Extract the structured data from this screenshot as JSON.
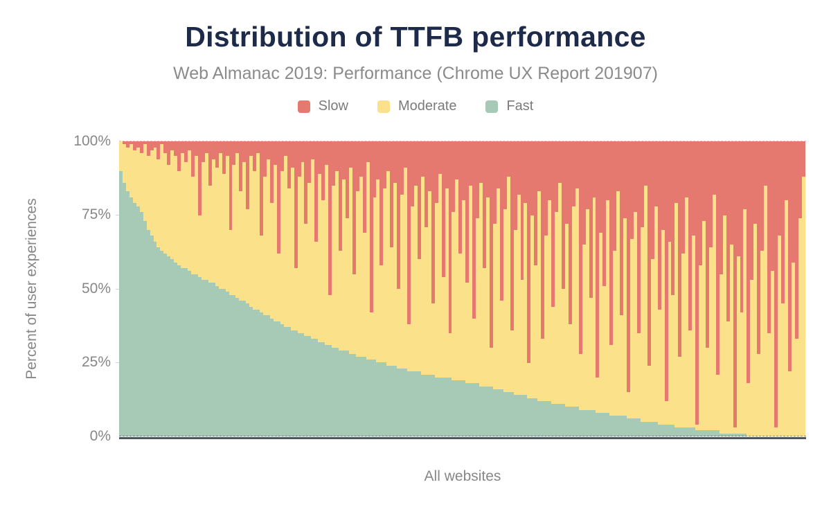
{
  "title": "Distribution of TTFB performance",
  "subtitle": "Web Almanac 2019: Performance (Chrome UX Report 201907)",
  "legend": {
    "items": [
      {
        "label": "Slow",
        "color": "#e5786f"
      },
      {
        "label": "Moderate",
        "color": "#fbe28a"
      },
      {
        "label": "Fast",
        "color": "#a7cab6"
      }
    ]
  },
  "axes": {
    "y_title": "Percent of user experiences",
    "y_ticks": [
      "100%",
      "75%",
      "50%",
      "25%",
      "0%"
    ],
    "x_title": "All websites"
  },
  "colors": {
    "title_text": "#1d2a4a",
    "muted_text": "#878787",
    "axis_line": "#4d565e",
    "slow": "#e5786f",
    "moderate": "#fbe28a",
    "fast": "#a7cab6"
  },
  "chart_data": {
    "type": "bar",
    "stacked": true,
    "title": "Distribution of TTFB performance",
    "subtitle": "Web Almanac 2019: Performance (Chrome UX Report 201907)",
    "xlabel": "All websites",
    "ylabel": "Percent of user experiences",
    "ylim": [
      0,
      100
    ],
    "y_tick_labels": [
      "100%",
      "75%",
      "50%",
      "25%",
      "0%"
    ],
    "legend_position": "top",
    "grid": "dashed line at 100% and dashed+solid baseline at 0% only",
    "x_description": "Each column is one website, sorted by decreasing share of fast TTFB experiences; values in percent estimated from pixels",
    "stack_order_bottom_to_top": [
      "Fast",
      "Moderate",
      "Slow"
    ],
    "series": [
      {
        "name": "Fast",
        "color": "#a7cab6",
        "values": [
          90,
          86,
          83,
          81,
          79,
          78,
          76,
          73,
          70,
          68,
          66,
          64,
          63,
          62,
          61,
          60,
          59,
          58,
          57,
          57,
          56,
          55,
          55,
          54,
          53,
          53,
          52,
          52,
          51,
          50,
          50,
          49,
          48,
          48,
          47,
          46,
          46,
          45,
          44,
          43,
          43,
          42,
          41,
          41,
          40,
          39,
          39,
          38,
          37,
          37,
          36,
          36,
          35,
          35,
          34,
          34,
          33,
          33,
          32,
          32,
          31,
          31,
          30,
          30,
          29,
          29,
          29,
          28,
          28,
          27,
          27,
          27,
          26,
          26,
          26,
          25,
          25,
          25,
          24,
          24,
          24,
          23,
          23,
          23,
          22,
          22,
          22,
          22,
          21,
          21,
          21,
          21,
          20,
          20,
          20,
          20,
          20,
          19,
          19,
          19,
          19,
          18,
          18,
          18,
          18,
          17,
          17,
          17,
          17,
          16,
          16,
          16,
          15,
          15,
          15,
          14,
          14,
          14,
          14,
          13,
          13,
          13,
          12,
          12,
          12,
          12,
          11,
          11,
          11,
          11,
          10,
          10,
          10,
          10,
          9,
          9,
          9,
          9,
          9,
          8,
          8,
          8,
          8,
          7,
          7,
          7,
          7,
          7,
          6,
          6,
          6,
          6,
          5,
          5,
          5,
          5,
          5,
          4,
          4,
          4,
          4,
          4,
          3,
          3,
          3,
          3,
          3,
          3,
          2,
          2,
          2,
          2,
          2,
          2,
          2,
          1,
          1,
          1,
          1,
          1,
          1,
          1,
          1,
          0,
          0,
          0,
          0,
          0,
          0,
          0,
          0,
          0,
          0,
          0,
          0,
          0,
          0,
          0,
          0,
          0
        ]
      },
      {
        "name": "Moderate",
        "color": "#fbe28a",
        "values": [
          10,
          13,
          15,
          18,
          18,
          20,
          20,
          26,
          25,
          29,
          32,
          30,
          36,
          34,
          31,
          37,
          36,
          32,
          39,
          36,
          41,
          33,
          40,
          21,
          40,
          43,
          33,
          42,
          40,
          46,
          39,
          46,
          22,
          44,
          49,
          37,
          47,
          32,
          51,
          47,
          53,
          26,
          47,
          53,
          39,
          53,
          23,
          52,
          58,
          47,
          55,
          21,
          53,
          58,
          38,
          52,
          61,
          33,
          57,
          48,
          61,
          17,
          55,
          60,
          34,
          58,
          45,
          63,
          27,
          56,
          61,
          42,
          67,
          16,
          55,
          62,
          33,
          59,
          66,
          40,
          62,
          27,
          59,
          68,
          16,
          56,
          63,
          38,
          67,
          50,
          62,
          24,
          59,
          69,
          34,
          64,
          15,
          57,
          68,
          43,
          61,
          34,
          67,
          22,
          56,
          69,
          40,
          64,
          13,
          56,
          68,
          30,
          62,
          73,
          21,
          56,
          68,
          39,
          65,
          12,
          62,
          45,
          71,
          21,
          56,
          68,
          33,
          65,
          75,
          39,
          62,
          28,
          68,
          74,
          19,
          56,
          68,
          38,
          72,
          12,
          61,
          43,
          72,
          24,
          56,
          76,
          34,
          67,
          9,
          61,
          70,
          29,
          66,
          80,
          19,
          55,
          73,
          39,
          66,
          8,
          62,
          44,
          76,
          24,
          59,
          78,
          33,
          65,
          2,
          56,
          71,
          28,
          62,
          80,
          19,
          54,
          74,
          38,
          64,
          2,
          60,
          41,
          76,
          18,
          53,
          72,
          28,
          63,
          85,
          35,
          56,
          3,
          68,
          45,
          80,
          22,
          59,
          33,
          74,
          88
        ]
      },
      {
        "name": "Slow",
        "color": "#e5786f",
        "values": [
          0,
          1,
          2,
          1,
          3,
          2,
          4,
          1,
          5,
          3,
          2,
          6,
          1,
          4,
          8,
          3,
          5,
          10,
          4,
          7,
          3,
          12,
          5,
          25,
          7,
          4,
          15,
          6,
          9,
          4,
          11,
          5,
          30,
          8,
          4,
          17,
          7,
          23,
          5,
          10,
          4,
          32,
          12,
          6,
          21,
          8,
          38,
          10,
          5,
          16,
          9,
          43,
          12,
          7,
          28,
          14,
          6,
          34,
          11,
          20,
          8,
          52,
          15,
          10,
          37,
          13,
          26,
          9,
          45,
          17,
          12,
          31,
          7,
          58,
          19,
          13,
          42,
          16,
          10,
          36,
          14,
          50,
          18,
          9,
          62,
          22,
          15,
          40,
          12,
          29,
          17,
          55,
          21,
          11,
          46,
          16,
          65,
          24,
          13,
          38,
          20,
          48,
          15,
          60,
          26,
          14,
          43,
          19,
          70,
          28,
          16,
          54,
          23,
          12,
          64,
          30,
          18,
          47,
          21,
          75,
          25,
          42,
          17,
          67,
          32,
          20,
          56,
          24,
          14,
          50,
          28,
          62,
          22,
          16,
          72,
          35,
          23,
          53,
          19,
          80,
          31,
          49,
          20,
          69,
          37,
          17,
          59,
          26,
          85,
          33,
          24,
          65,
          29,
          15,
          76,
          40,
          22,
          57,
          30,
          88,
          34,
          52,
          21,
          73,
          38,
          19,
          64,
          32,
          96,
          42,
          27,
          70,
          36,
          18,
          79,
          45,
          25,
          61,
          35,
          97,
          39,
          58,
          23,
          82,
          47,
          28,
          72,
          37,
          15,
          65,
          44,
          97,
          32,
          55,
          20,
          78,
          41,
          67,
          26,
          12
        ]
      }
    ]
  }
}
